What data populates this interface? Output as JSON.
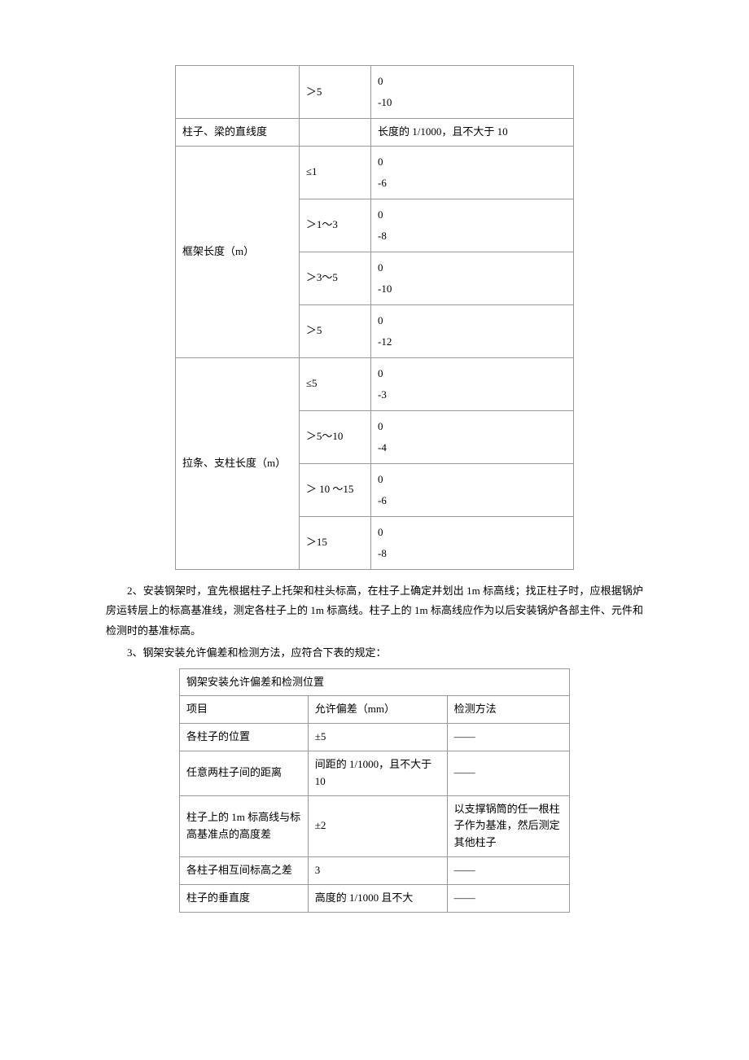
{
  "table1": {
    "rows": [
      {
        "col_a": "",
        "col_b": "＞5",
        "col_c_top": "0",
        "col_c_bot": "-10",
        "stacked": true
      },
      {
        "col_a": "柱子、梁的直线度",
        "col_b": "",
        "col_c": "长度的 1/1000，且不大于 10",
        "stacked": false
      }
    ],
    "frame_len": {
      "label": "框架长度（m）",
      "items": [
        {
          "b": "≤1",
          "c1": "0",
          "c2": "-6"
        },
        {
          "b": "＞1～3",
          "c1": "0",
          "c2": "-8"
        },
        {
          "b": "＞3～5",
          "c1": "0",
          "c2": "-10"
        },
        {
          "b": "＞5",
          "c1": "0",
          "c2": "-12"
        }
      ]
    },
    "brace_len": {
      "label": "拉条、支柱长度（m）",
      "items": [
        {
          "b": "≤5",
          "c1": "0",
          "c2": "-3"
        },
        {
          "b": "＞5～10",
          "c1": "0",
          "c2": "-4"
        },
        {
          "b": "＞ 10 ～15",
          "c1": "0",
          "c2": "-6"
        },
        {
          "b": "＞15",
          "c1": "0",
          "c2": "-8"
        }
      ]
    }
  },
  "para2": "2、安装钢架时，宜先根据柱子上托架和柱头标高，在柱子上确定并划出 1m 标高线；找正柱子时，应根据锅炉房运转层上的标高基准线，测定各柱子上的 1m 标高线。柱子上的 1m 标高线应作为以后安装锅炉各部主件、元件和检测时的基准标高。",
  "para3": "3、钢架安装允许偏差和检测方法，应符合下表的规定：",
  "table2": {
    "title": "钢架安装允许偏差和检测位置",
    "headers": {
      "h1": "项目",
      "h2": "允许偏差（mm）",
      "h3": "检测方法"
    },
    "rows": [
      {
        "a": "各柱子的位置",
        "b": "±5",
        "c": "——"
      },
      {
        "a": "任意两柱子间的距离",
        "b": "间距的 1/1000，且不大于 10",
        "c": "——"
      },
      {
        "a": "柱子上的 1m 标高线与标高基准点的高度差",
        "b": "±2",
        "c": "以支撑锅筒的任一根柱子作为基准，然后测定其他柱子"
      },
      {
        "a": "各柱子相互间标高之差",
        "b": "3",
        "c": "——"
      },
      {
        "a": "柱子的垂直度",
        "b": "高度的 1/1000 且不大",
        "c": "——"
      }
    ]
  }
}
